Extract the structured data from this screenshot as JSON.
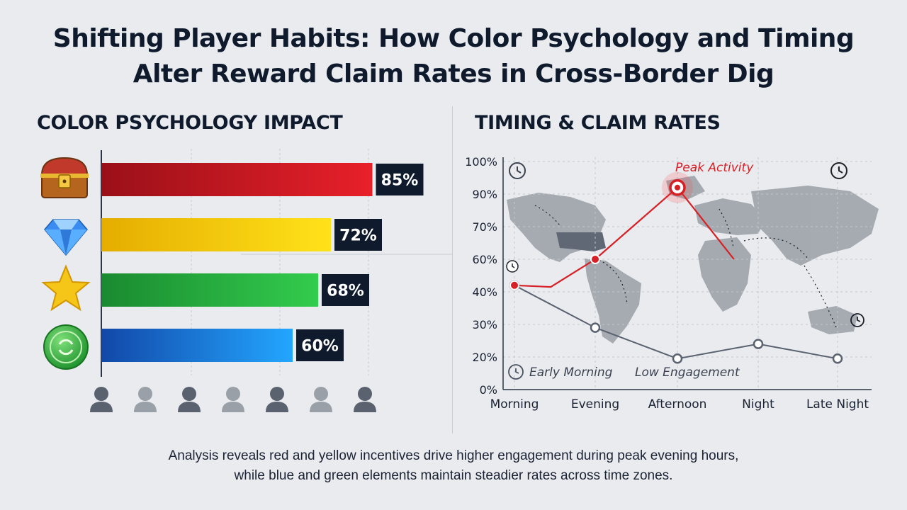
{
  "title": {
    "line1": "Shifting Player Habits: How Color Psychology and Timing",
    "line2": "Alter Reward Claim Rates in Cross-Border Dig"
  },
  "left_panel": {
    "heading": "COLOR PSYCHOLOGY IMPACT",
    "icons": [
      "treasure-chest-icon",
      "diamond-icon",
      "star-icon",
      "green-coin-icon"
    ],
    "user_icon_count": 7
  },
  "right_panel": {
    "heading": "TIMING & CLAIM RATES",
    "annotations": {
      "peak": "Peak Activity",
      "early": "Early Morning",
      "low": "Low Engagement"
    }
  },
  "caption": {
    "line1": "Analysis reveals red and yellow incentives drive higher engagement during peak evening hours,",
    "line2": "while blue and green elements maintain steadier rates across time zones."
  },
  "chart_data": [
    {
      "type": "bar",
      "orientation": "horizontal",
      "title": "COLOR PSYCHOLOGY IMPACT",
      "categories": [
        "Red",
        "Yellow",
        "Green",
        "Blue"
      ],
      "values": [
        85,
        72,
        68,
        60
      ],
      "labels": [
        "85%",
        "72%",
        "68%",
        "60%"
      ],
      "colors": [
        "#c8102e",
        "#f2c500",
        "#2db84a",
        "#1f8fe6"
      ],
      "xlim": [
        0,
        100
      ]
    },
    {
      "type": "line",
      "title": "TIMING & CLAIM RATES",
      "x": [
        "Morning",
        "Evening",
        "Afternoon",
        "Night",
        "Late Night"
      ],
      "y_ticks": [
        "0%",
        "20%",
        "30%",
        "40%",
        "60%",
        "70%",
        "90%",
        "100%"
      ],
      "series": [
        {
          "color": "#d71f26",
          "points": [
            [
              0,
              44
            ],
            [
              0.45,
              43
            ],
            [
              1,
              60
            ],
            [
              2,
              92
            ],
            [
              2.7,
              60
            ]
          ]
        },
        {
          "color": "#5a6270",
          "points": [
            [
              0,
              44
            ],
            [
              1,
              29
            ],
            [
              2,
              19
            ],
            [
              3,
              24
            ],
            [
              4,
              19
            ]
          ]
        }
      ]
    }
  ]
}
